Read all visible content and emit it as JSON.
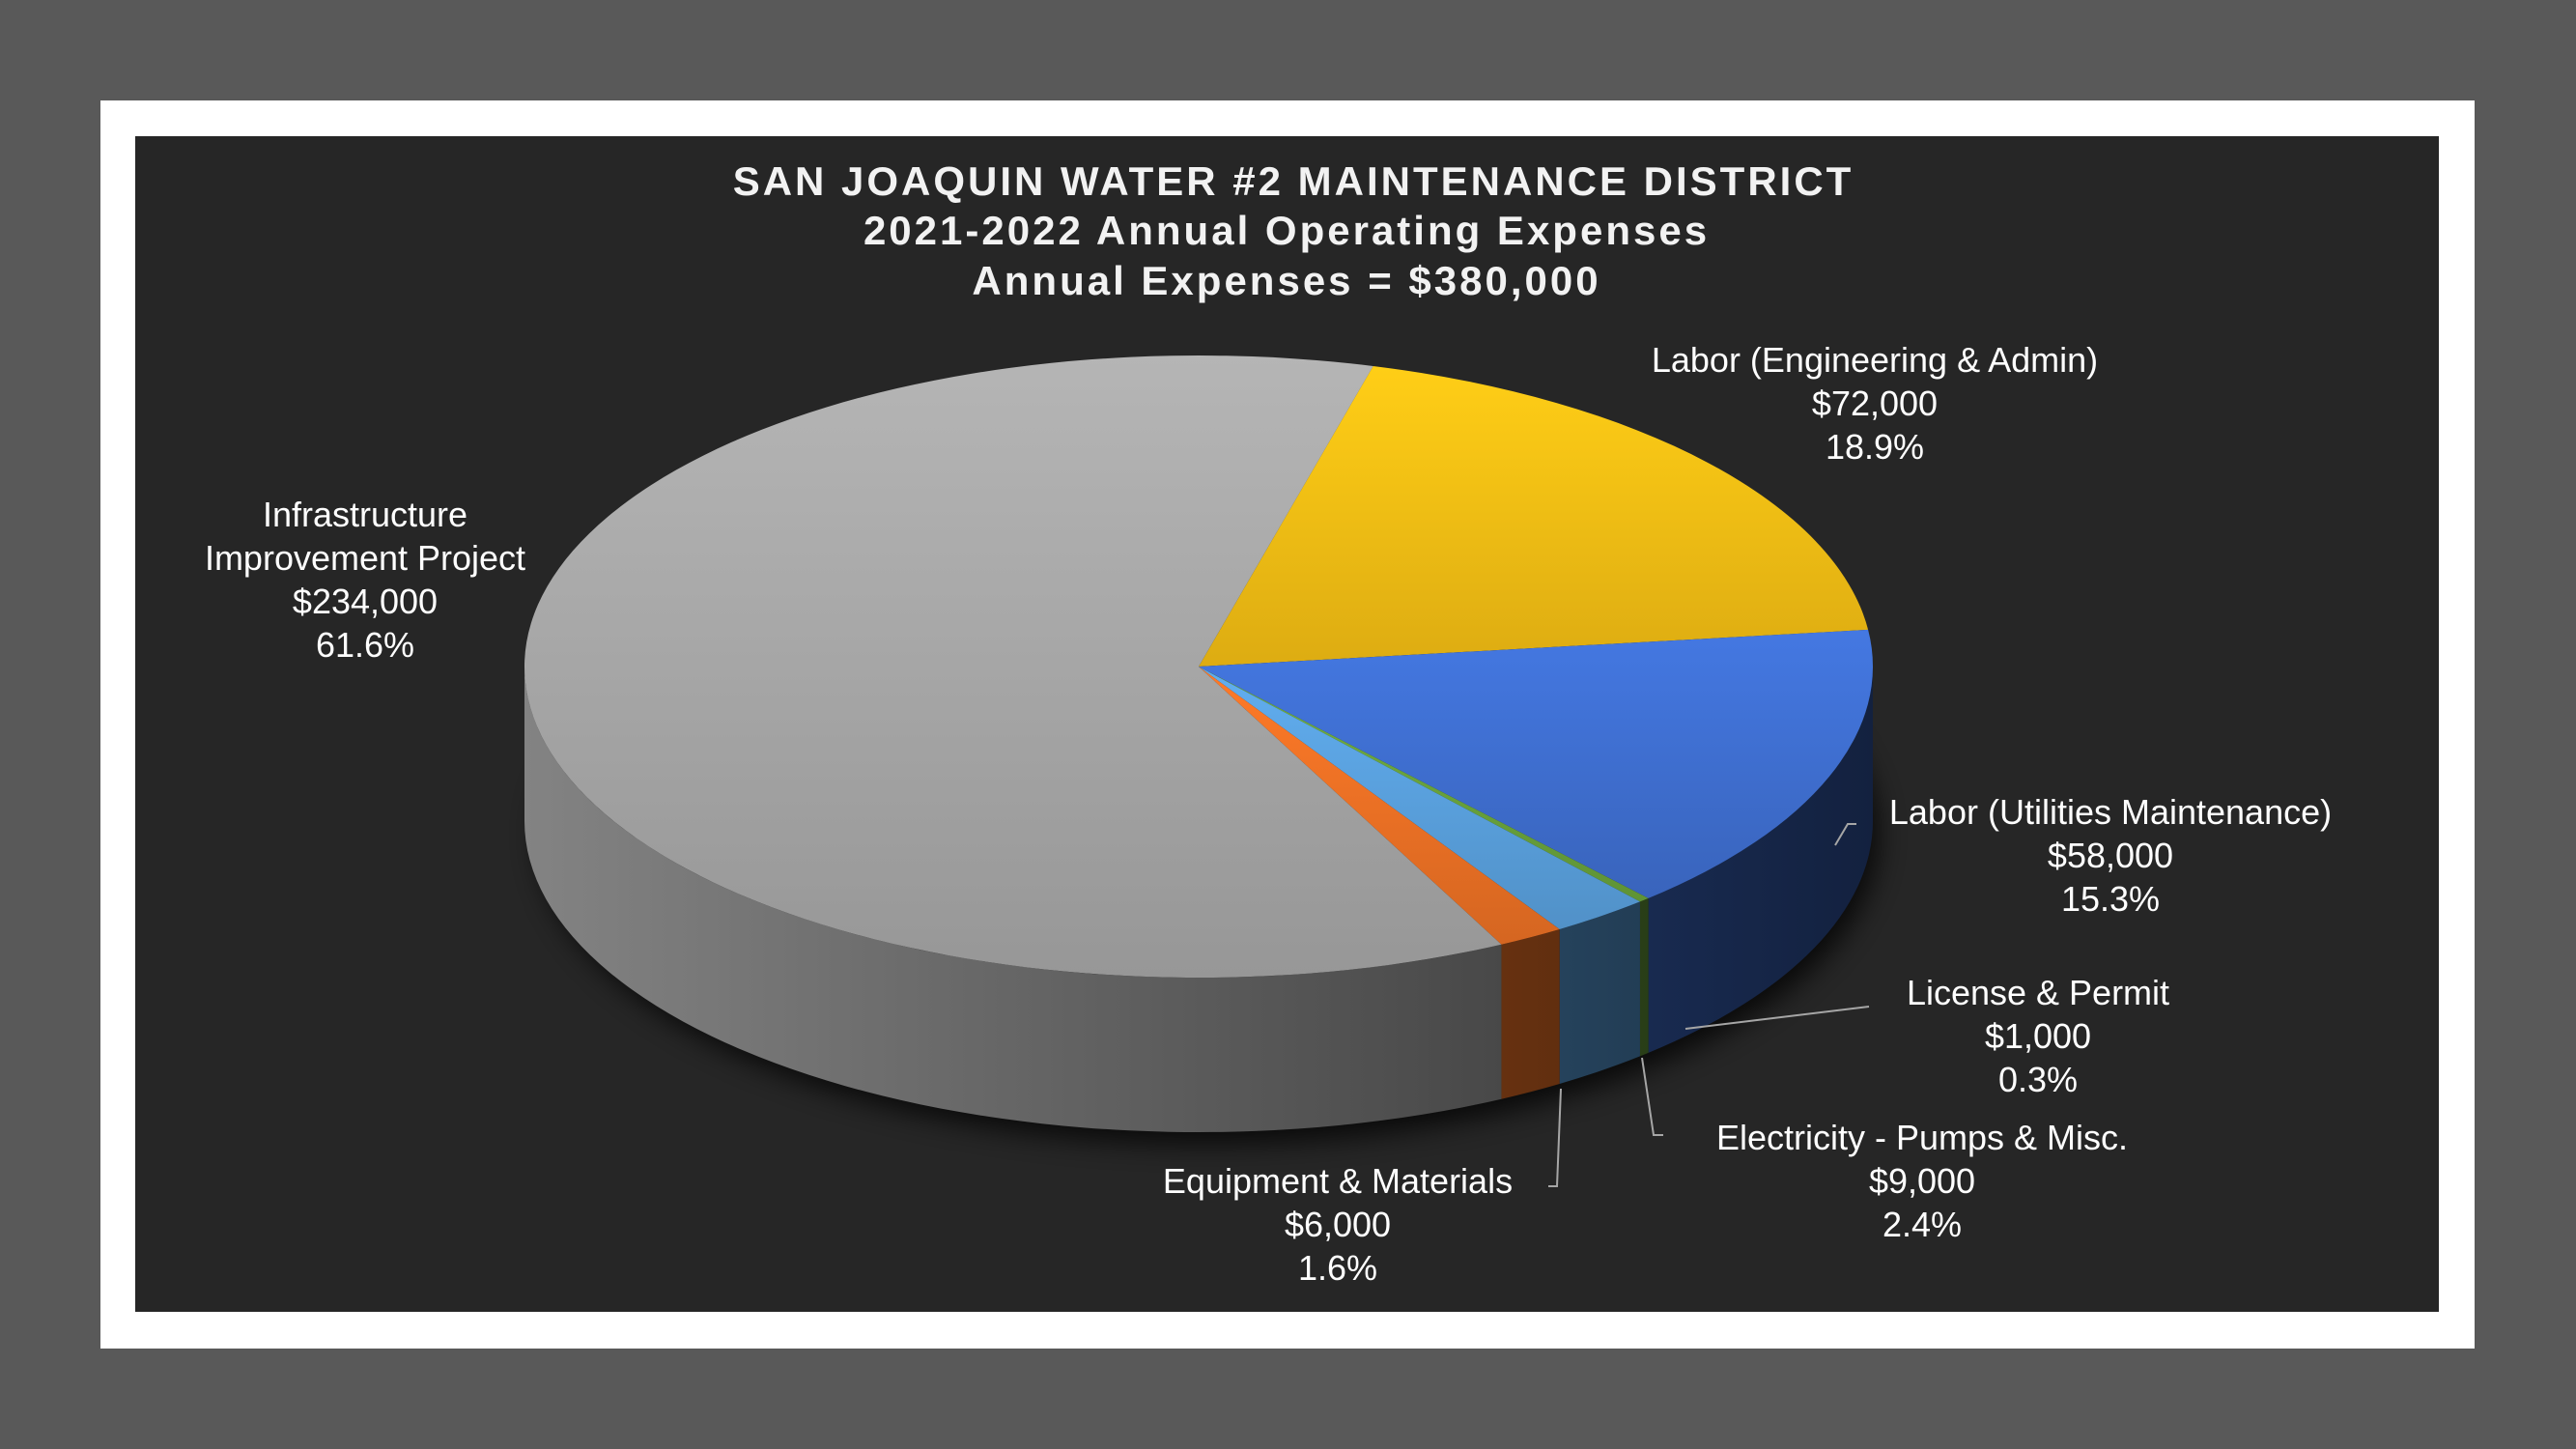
{
  "chart_data": {
    "type": "pie",
    "style": "3d",
    "title_lines": [
      "SAN JOAQUIN WATER #2 MAINTENANCE DISTRICT",
      "2021-2022 Annual Operating Expenses",
      "Annual Expenses = $380,000"
    ],
    "slices": [
      {
        "label_lines": [
          "Labor (Engineering & Admin)"
        ],
        "value_text": "$72,000",
        "value": 72000,
        "percent_text": "18.9%",
        "percent": 18.9,
        "color": "#f5bf14"
      },
      {
        "label_lines": [
          "Labor (Utilities Maintenance)"
        ],
        "value_text": "$58,000",
        "value": 58000,
        "percent_text": "15.3%",
        "percent": 15.3,
        "color": "#3f6fd1"
      },
      {
        "label_lines": [
          "License & Permit"
        ],
        "value_text": "$1,000",
        "value": 1000,
        "percent_text": "0.3%",
        "percent": 0.3,
        "color": "#6aa33c"
      },
      {
        "label_lines": [
          "Electricity - Pumps & Misc."
        ],
        "value_text": "$9,000",
        "value": 9000,
        "percent_text": "2.4%",
        "percent": 2.4,
        "color": "#5aa1de"
      },
      {
        "label_lines": [
          "Equipment & Materials"
        ],
        "value_text": "$6,000",
        "value": 6000,
        "percent_text": "1.6%",
        "percent": 1.6,
        "color": "#ed7125"
      },
      {
        "label_lines": [
          "Infrastructure",
          "Improvement Project"
        ],
        "value_text": "$234,000",
        "value": 234000,
        "percent_text": "61.6%",
        "percent": 61.6,
        "color": "#a8a8a8"
      }
    ]
  }
}
